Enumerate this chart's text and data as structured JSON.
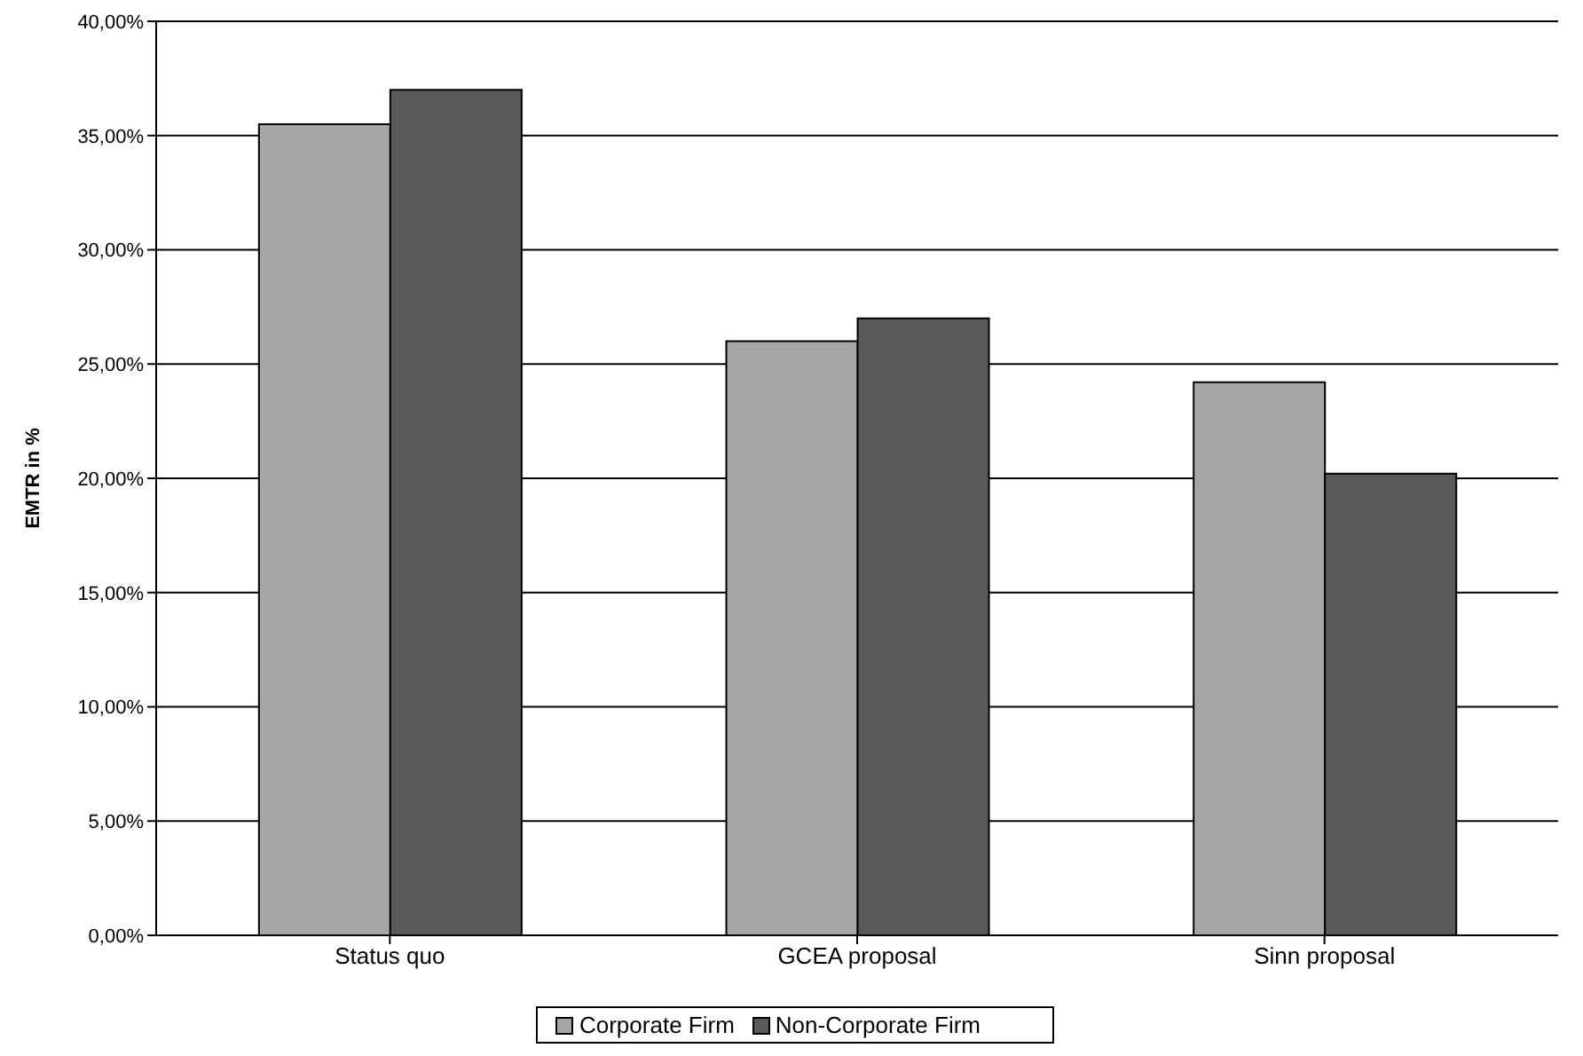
{
  "chart_data": {
    "type": "bar",
    "ylabel": "EMTR in %",
    "categories": [
      "Status quo",
      "GCEA proposal",
      "Sinn proposal"
    ],
    "series": [
      {
        "name": "Corporate Firm",
        "color": "#a6a6a6",
        "values": [
          35.5,
          26.0,
          24.2
        ]
      },
      {
        "name": "Non-Corporate Firm",
        "color": "#595959",
        "values": [
          37.0,
          27.0,
          20.2
        ]
      }
    ],
    "ylim": [
      0,
      40
    ],
    "yticks": [
      {
        "value": 0,
        "label": "0,00%"
      },
      {
        "value": 5,
        "label": "5,00%"
      },
      {
        "value": 10,
        "label": "10,00%"
      },
      {
        "value": 15,
        "label": "15,00%"
      },
      {
        "value": 20,
        "label": "20,00%"
      },
      {
        "value": 25,
        "label": "25,00%"
      },
      {
        "value": 30,
        "label": "30,00%"
      },
      {
        "value": 35,
        "label": "35,00%"
      },
      {
        "value": 40,
        "label": "40,00%"
      }
    ],
    "grid": "y",
    "legend": "bottom"
  }
}
